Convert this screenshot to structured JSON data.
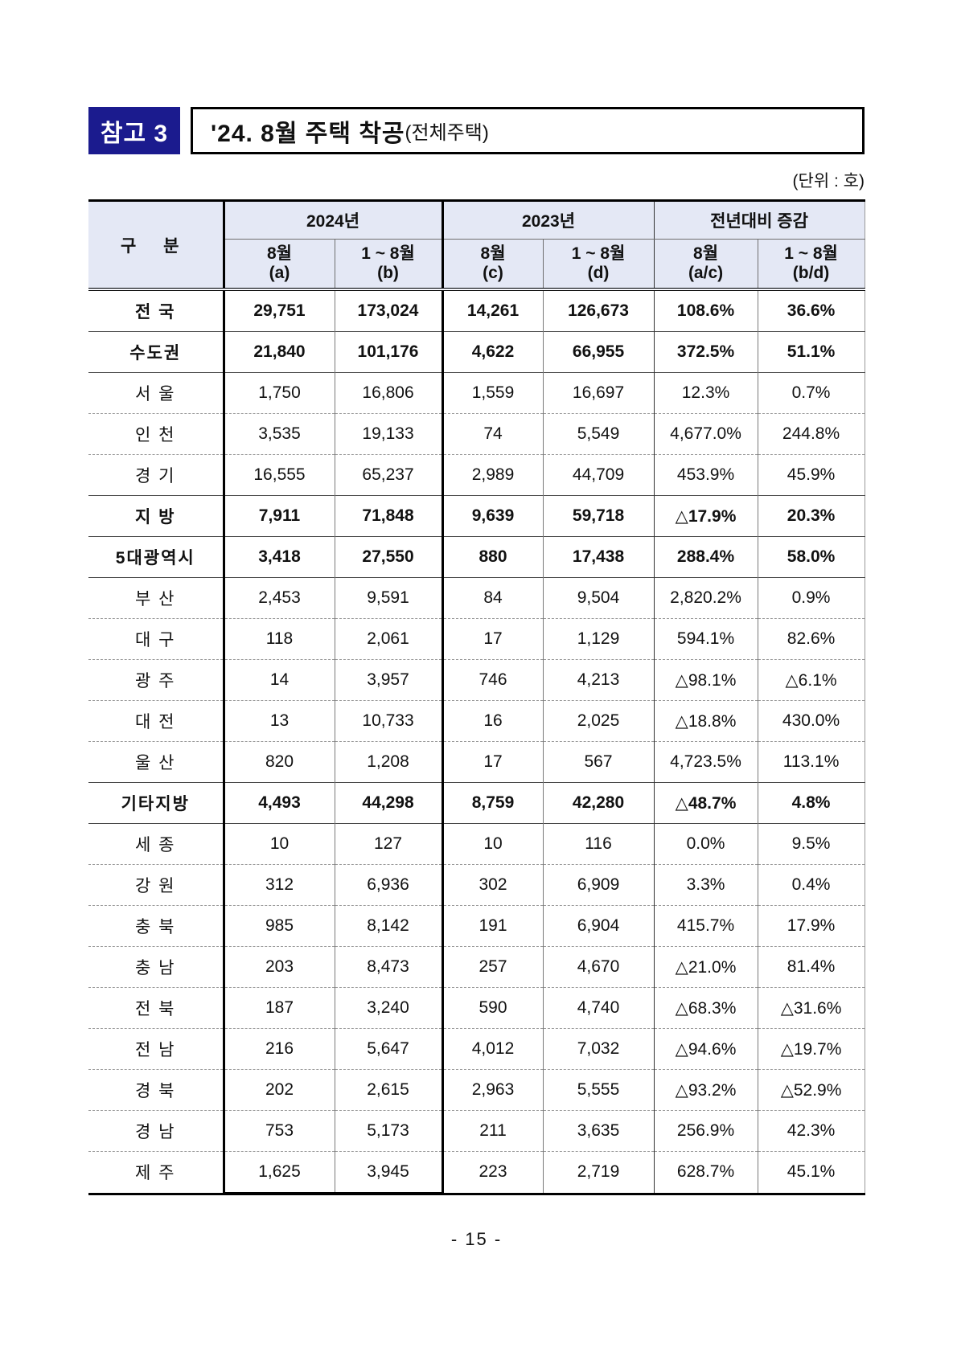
{
  "header": {
    "badge": "참고 3",
    "title": "'24. 8월 주택 착공",
    "title_suffix": "(전체주택)"
  },
  "unit_label": "(단위 : 호)",
  "table": {
    "columns": {
      "category": "구 분",
      "group_2024": "2024년",
      "group_2023": "2023년",
      "group_yoy": "전년대비 증감"
    },
    "sub_columns": [
      "8월\n(a)",
      "1 ~ 8월\n(b)",
      "8월\n(c)",
      "1 ~ 8월\n(d)",
      "8월\n(a/c)",
      "1 ~ 8월\n(b/d)"
    ],
    "rows": [
      {
        "label": "전 국",
        "values": [
          "29,751",
          "173,024",
          "14,261",
          "126,673",
          "108.6%",
          "36.6%"
        ],
        "emphasis": true,
        "separator": "solid"
      },
      {
        "label": "수도권",
        "values": [
          "21,840",
          "101,176",
          "4,622",
          "66,955",
          "372.5%",
          "51.1%"
        ],
        "emphasis": true,
        "separator": "solid"
      },
      {
        "label": "서 울",
        "values": [
          "1,750",
          "16,806",
          "1,559",
          "16,697",
          "12.3%",
          "0.7%"
        ],
        "emphasis": false,
        "separator": "solid"
      },
      {
        "label": "인 천",
        "values": [
          "3,535",
          "19,133",
          "74",
          "5,549",
          "4,677.0%",
          "244.8%"
        ],
        "emphasis": false,
        "separator": "dashed"
      },
      {
        "label": "경 기",
        "values": [
          "16,555",
          "65,237",
          "2,989",
          "44,709",
          "453.9%",
          "45.9%"
        ],
        "emphasis": false,
        "separator": "dashed"
      },
      {
        "label": "지 방",
        "values": [
          "7,911",
          "71,848",
          "9,639",
          "59,718",
          "△17.9%",
          "20.3%"
        ],
        "emphasis": true,
        "separator": "solid"
      },
      {
        "label": "5대광역시",
        "values": [
          "3,418",
          "27,550",
          "880",
          "17,438",
          "288.4%",
          "58.0%"
        ],
        "emphasis": true,
        "separator": "solid"
      },
      {
        "label": "부 산",
        "values": [
          "2,453",
          "9,591",
          "84",
          "9,504",
          "2,820.2%",
          "0.9%"
        ],
        "emphasis": false,
        "separator": "solid"
      },
      {
        "label": "대 구",
        "values": [
          "118",
          "2,061",
          "17",
          "1,129",
          "594.1%",
          "82.6%"
        ],
        "emphasis": false,
        "separator": "dashed"
      },
      {
        "label": "광 주",
        "values": [
          "14",
          "3,957",
          "746",
          "4,213",
          "△98.1%",
          "△6.1%"
        ],
        "emphasis": false,
        "separator": "dashed"
      },
      {
        "label": "대 전",
        "values": [
          "13",
          "10,733",
          "16",
          "2,025",
          "△18.8%",
          "430.0%"
        ],
        "emphasis": false,
        "separator": "dashed"
      },
      {
        "label": "울 산",
        "values": [
          "820",
          "1,208",
          "17",
          "567",
          "4,723.5%",
          "113.1%"
        ],
        "emphasis": false,
        "separator": "dashed"
      },
      {
        "label": "기타지방",
        "values": [
          "4,493",
          "44,298",
          "8,759",
          "42,280",
          "△48.7%",
          "4.8%"
        ],
        "emphasis": true,
        "separator": "solid"
      },
      {
        "label": "세 종",
        "values": [
          "10",
          "127",
          "10",
          "116",
          "0.0%",
          "9.5%"
        ],
        "emphasis": false,
        "separator": "solid"
      },
      {
        "label": "강 원",
        "values": [
          "312",
          "6,936",
          "302",
          "6,909",
          "3.3%",
          "0.4%"
        ],
        "emphasis": false,
        "separator": "dashed"
      },
      {
        "label": "충 북",
        "values": [
          "985",
          "8,142",
          "191",
          "6,904",
          "415.7%",
          "17.9%"
        ],
        "emphasis": false,
        "separator": "dashed"
      },
      {
        "label": "충 남",
        "values": [
          "203",
          "8,473",
          "257",
          "4,670",
          "△21.0%",
          "81.4%"
        ],
        "emphasis": false,
        "separator": "dashed"
      },
      {
        "label": "전 북",
        "values": [
          "187",
          "3,240",
          "590",
          "4,740",
          "△68.3%",
          "△31.6%"
        ],
        "emphasis": false,
        "separator": "dashed"
      },
      {
        "label": "전 남",
        "values": [
          "216",
          "5,647",
          "4,012",
          "7,032",
          "△94.6%",
          "△19.7%"
        ],
        "emphasis": false,
        "separator": "dashed"
      },
      {
        "label": "경 북",
        "values": [
          "202",
          "2,615",
          "2,963",
          "5,555",
          "△93.2%",
          "△52.9%"
        ],
        "emphasis": false,
        "separator": "dashed"
      },
      {
        "label": "경 남",
        "values": [
          "753",
          "5,173",
          "211",
          "3,635",
          "256.9%",
          "42.3%"
        ],
        "emphasis": false,
        "separator": "dashed"
      },
      {
        "label": "제 주",
        "values": [
          "1,625",
          "3,945",
          "223",
          "2,719",
          "628.7%",
          "45.1%"
        ],
        "emphasis": false,
        "separator": "dashed"
      }
    ]
  },
  "footer": {
    "page_number": "- 15 -"
  }
}
